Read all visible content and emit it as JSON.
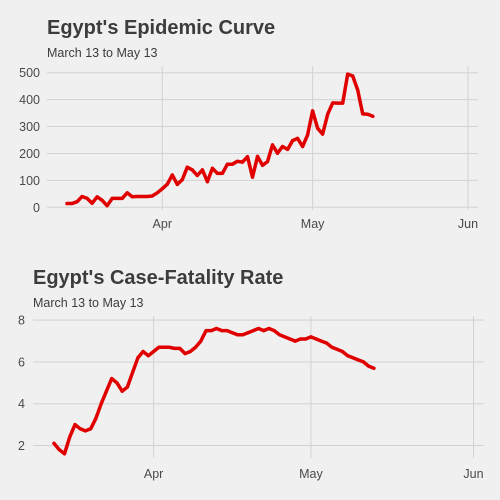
{
  "chart_data": [
    {
      "type": "line",
      "title": "Egypt's Epidemic Curve",
      "subtitle": "March 13 to May 13",
      "xlabel": "",
      "ylabel": "",
      "x_axis": "date",
      "xlim": [
        "2020-03-09",
        "2020-06-03"
      ],
      "ylim": [
        -10,
        525
      ],
      "x_ticks": [
        {
          "date": "2020-04-01",
          "label": "Apr"
        },
        {
          "date": "2020-05-01",
          "label": "May"
        },
        {
          "date": "2020-06-01",
          "label": "Jun"
        }
      ],
      "y_ticks": [
        0,
        100,
        200,
        300,
        400,
        500
      ],
      "grid": true,
      "series_color": "#e00000",
      "background": "#f0f0f0",
      "x": [
        "2020-03-13",
        "2020-03-14",
        "2020-03-15",
        "2020-03-16",
        "2020-03-17",
        "2020-03-18",
        "2020-03-19",
        "2020-03-20",
        "2020-03-21",
        "2020-03-22",
        "2020-03-23",
        "2020-03-24",
        "2020-03-25",
        "2020-03-26",
        "2020-03-27",
        "2020-03-28",
        "2020-03-29",
        "2020-03-30",
        "2020-03-31",
        "2020-04-01",
        "2020-04-02",
        "2020-04-03",
        "2020-04-04",
        "2020-04-05",
        "2020-04-06",
        "2020-04-07",
        "2020-04-08",
        "2020-04-09",
        "2020-04-10",
        "2020-04-11",
        "2020-04-12",
        "2020-04-13",
        "2020-04-14",
        "2020-04-15",
        "2020-04-16",
        "2020-04-17",
        "2020-04-18",
        "2020-04-19",
        "2020-04-20",
        "2020-04-21",
        "2020-04-22",
        "2020-04-23",
        "2020-04-24",
        "2020-04-25",
        "2020-04-26",
        "2020-04-27",
        "2020-04-28",
        "2020-04-29",
        "2020-04-30",
        "2020-05-01",
        "2020-05-02",
        "2020-05-03",
        "2020-05-04",
        "2020-05-05",
        "2020-05-06",
        "2020-05-07",
        "2020-05-08",
        "2020-05-09",
        "2020-05-10",
        "2020-05-11",
        "2020-05-12",
        "2020-05-13"
      ],
      "values": [
        14,
        14,
        21,
        40,
        33,
        15,
        39,
        26,
        6,
        33,
        33,
        33,
        54,
        39,
        40,
        40,
        40,
        42,
        54,
        69,
        86,
        120,
        85,
        103,
        149,
        139,
        118,
        139,
        95,
        145,
        126,
        126,
        160,
        160,
        171,
        168,
        188,
        112,
        189,
        156,
        170,
        232,
        201,
        226,
        215,
        248,
        256,
        226,
        269,
        358,
        294,
        272,
        346,
        388,
        387,
        387,
        495,
        488,
        436,
        347,
        346,
        338
      ]
    },
    {
      "type": "line",
      "title": "Egypt's Case-Fatality Rate",
      "subtitle": "March 13 to May 13",
      "xlabel": "",
      "ylabel": "",
      "x_axis": "date",
      "xlim": [
        "2020-03-09",
        "2020-06-03"
      ],
      "ylim": [
        1.4,
        8.2
      ],
      "x_ticks": [
        {
          "date": "2020-04-01",
          "label": "Apr"
        },
        {
          "date": "2020-05-01",
          "label": "May"
        },
        {
          "date": "2020-06-01",
          "label": "Jun"
        }
      ],
      "y_ticks": [
        2,
        4,
        6,
        8
      ],
      "grid": true,
      "series_color": "#e00000",
      "background": "#f0f0f0",
      "x": [
        "2020-03-13",
        "2020-03-14",
        "2020-03-15",
        "2020-03-16",
        "2020-03-17",
        "2020-03-18",
        "2020-03-19",
        "2020-03-20",
        "2020-03-21",
        "2020-03-22",
        "2020-03-23",
        "2020-03-24",
        "2020-03-25",
        "2020-03-26",
        "2020-03-27",
        "2020-03-28",
        "2020-03-29",
        "2020-03-30",
        "2020-03-31",
        "2020-04-01",
        "2020-04-02",
        "2020-04-03",
        "2020-04-04",
        "2020-04-05",
        "2020-04-06",
        "2020-04-07",
        "2020-04-08",
        "2020-04-09",
        "2020-04-10",
        "2020-04-11",
        "2020-04-12",
        "2020-04-13",
        "2020-04-14",
        "2020-04-15",
        "2020-04-16",
        "2020-04-17",
        "2020-04-18",
        "2020-04-19",
        "2020-04-20",
        "2020-04-21",
        "2020-04-22",
        "2020-04-23",
        "2020-04-24",
        "2020-04-25",
        "2020-04-26",
        "2020-04-27",
        "2020-04-28",
        "2020-04-29",
        "2020-04-30",
        "2020-05-01",
        "2020-05-02",
        "2020-05-03",
        "2020-05-04",
        "2020-05-05",
        "2020-05-06",
        "2020-05-07",
        "2020-05-08",
        "2020-05-09",
        "2020-05-10",
        "2020-05-11",
        "2020-05-12",
        "2020-05-13"
      ],
      "values": [
        2.1,
        1.8,
        1.6,
        2.4,
        3.0,
        2.8,
        2.7,
        2.8,
        3.3,
        4.0,
        4.6,
        5.2,
        5.0,
        4.6,
        4.8,
        5.5,
        6.2,
        6.5,
        6.3,
        6.5,
        6.7,
        6.7,
        6.7,
        6.65,
        6.65,
        6.4,
        6.5,
        6.7,
        7.0,
        7.5,
        7.5,
        7.6,
        7.5,
        7.5,
        7.4,
        7.3,
        7.3,
        7.4,
        7.5,
        7.6,
        7.5,
        7.6,
        7.5,
        7.3,
        7.2,
        7.1,
        7.0,
        7.1,
        7.1,
        7.2,
        7.1,
        7.0,
        6.9,
        6.7,
        6.6,
        6.5,
        6.3,
        6.2,
        6.1,
        6.0,
        5.8,
        5.7
      ]
    }
  ]
}
